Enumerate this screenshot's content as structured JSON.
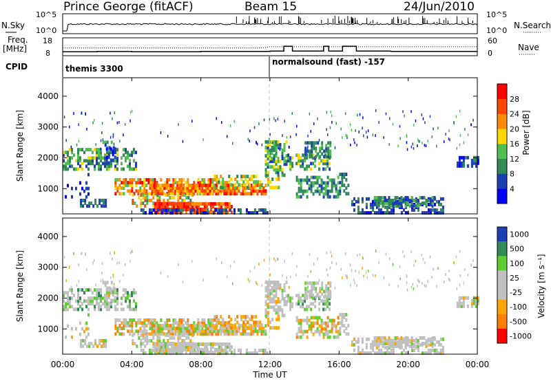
{
  "header": {
    "station": "Prince George (fitACF)",
    "beam": "Beam 15",
    "date": "24/Jun/2010"
  },
  "left_labels": {
    "nsky": "N.Sky",
    "freq": "Freq.",
    "freq_unit": "[MHz]",
    "cpid": "CPID"
  },
  "right_labels": {
    "nsearch": "N.Search",
    "nave": "Nave"
  },
  "cpid_segments": [
    "themis 3300",
    "normalsound (fast) -157"
  ],
  "time_axis": {
    "label": "Time UT",
    "ticks": [
      "00:00",
      "04:00",
      "08:00",
      "12:00",
      "16:00",
      "20:00",
      "00:00"
    ]
  },
  "colors": {
    "power": [
      "#0000ff",
      "#1e3fb4",
      "#2e8b57",
      "#4fbf4f",
      "#ffd700",
      "#ff8c00",
      "#ff4500",
      "#ff0000"
    ],
    "velocity": [
      "#ff0000",
      "#ff7f00",
      "#ffa500",
      "#c0c0c0",
      "#c0c0c0",
      "#5fcf2f",
      "#2e8b57",
      "#1e3fb4"
    ]
  },
  "chart_data": [
    {
      "type": "line",
      "name": "noise",
      "y_left": {
        "label": "N.Sky",
        "ticks": [
          "10^0",
          "10^5"
        ]
      },
      "y_right": {
        "label": "N.Search",
        "ticks": [
          "10^0",
          "10^5"
        ]
      },
      "x_range_hours": [
        0,
        24
      ]
    },
    {
      "type": "line",
      "name": "frequency",
      "y_left": {
        "label": "Freq. [MHz]",
        "ticks": [
          "8",
          "18"
        ]
      },
      "y_right": {
        "label": "Nave",
        "ticks": [
          "0",
          "60"
        ]
      },
      "x_range_hours": [
        0,
        24
      ]
    },
    {
      "type": "heatmap",
      "name": "power",
      "ylabel": "Slant Range [km]",
      "yticks": [
        "1000",
        "2000",
        "3000",
        "4000"
      ],
      "colorbar_label": "Power [dB]",
      "colorbar_ticks": [
        "4",
        "8",
        "12",
        "16",
        "20",
        "24",
        "28"
      ],
      "ylim": [
        180,
        4600
      ],
      "x_range_hours": [
        0,
        24
      ]
    },
    {
      "type": "heatmap",
      "name": "velocity",
      "ylabel": "Slant Range [km]",
      "yticks": [
        "1000",
        "2000",
        "3000",
        "4000"
      ],
      "colorbar_label": "Velocity [m s⁻¹]",
      "colorbar_ticks": [
        "1000",
        "500",
        "100",
        "25",
        "-25",
        "-100",
        "-500",
        "-1000"
      ],
      "ylim": [
        180,
        4600
      ],
      "x_range_hours": [
        0,
        24
      ]
    }
  ]
}
